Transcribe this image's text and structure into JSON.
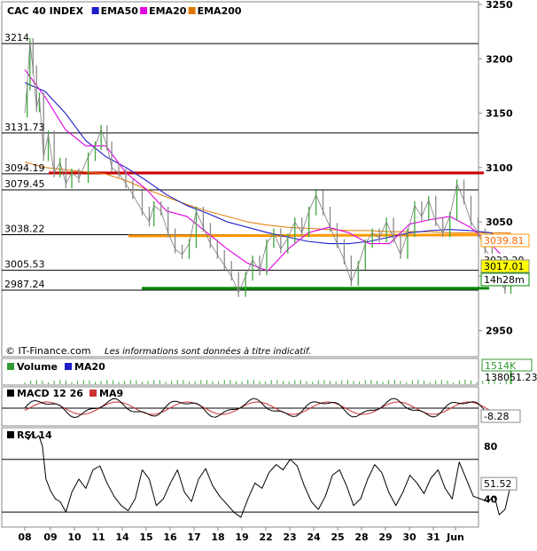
{
  "chart_data": {
    "type": "line",
    "title": "CAC 40 INDEX",
    "main_panel": {
      "legend": [
        {
          "name": "CAC 40 INDEX",
          "color": "#2f9a2f"
        },
        {
          "name": "EMA50",
          "color": "#1c1cc8"
        },
        {
          "name": "EMA20",
          "color": "#e000e0"
        },
        {
          "name": "EMA200",
          "color": "#e07800"
        }
      ],
      "ylim": [
        2935,
        3250
      ],
      "y_ticks": [
        2950,
        3000,
        3050,
        3100,
        3150,
        3200,
        3250
      ],
      "horizontal_levels": [
        3214,
        3131.73,
        3094.19,
        3079.45,
        3038.22,
        3005.53,
        2987.24
      ],
      "level_labels": [
        "3214",
        "3131.73",
        "3094.19",
        "3079.45",
        "3038.22",
        "3005.53",
        "2987.24"
      ],
      "trend_lines": [
        {
          "name": "resistance",
          "color": "#cc0000",
          "y_start": 3095,
          "y_end": 3095
        },
        {
          "name": "support-ema200",
          "color": "#ff9900",
          "y_start": 3037,
          "y_end": 3038
        },
        {
          "name": "support",
          "color": "#008800",
          "y_start": 2989,
          "y_end": 2989
        }
      ],
      "last_value_labels": [
        {
          "text": "3039.81",
          "value": 3039.81,
          "style": "outline-orange"
        },
        {
          "text": "3022.20",
          "value": 3022.2,
          "style": "plain"
        },
        {
          "text": "3017.01",
          "value": 3017.01,
          "style": "fill-yellow"
        },
        {
          "text": "14h28m",
          "value": 3005,
          "style": "outline-green"
        }
      ],
      "price_points": [
        {
          "x": 0.0,
          "y": 3150
        },
        {
          "x": 0.1,
          "y": 3175
        },
        {
          "x": 0.22,
          "y": 3215
        },
        {
          "x": 0.35,
          "y": 3190
        },
        {
          "x": 0.5,
          "y": 3155
        },
        {
          "x": 0.62,
          "y": 3165
        },
        {
          "x": 0.8,
          "y": 3110
        },
        {
          "x": 1.0,
          "y": 3130
        },
        {
          "x": 1.25,
          "y": 3095
        },
        {
          "x": 1.5,
          "y": 3105
        },
        {
          "x": 1.75,
          "y": 3085
        },
        {
          "x": 2.0,
          "y": 3095
        },
        {
          "x": 2.3,
          "y": 3090
        },
        {
          "x": 2.7,
          "y": 3110
        },
        {
          "x": 3.0,
          "y": 3120
        },
        {
          "x": 3.25,
          "y": 3135
        },
        {
          "x": 3.5,
          "y": 3120
        },
        {
          "x": 3.7,
          "y": 3100
        },
        {
          "x": 4.0,
          "y": 3095
        },
        {
          "x": 4.3,
          "y": 3085
        },
        {
          "x": 4.6,
          "y": 3075
        },
        {
          "x": 5.0,
          "y": 3060
        },
        {
          "x": 5.3,
          "y": 3050
        },
        {
          "x": 5.5,
          "y": 3065
        },
        {
          "x": 5.8,
          "y": 3060
        },
        {
          "x": 6.1,
          "y": 3040
        },
        {
          "x": 6.4,
          "y": 3025
        },
        {
          "x": 6.7,
          "y": 3020
        },
        {
          "x": 7.0,
          "y": 3030
        },
        {
          "x": 7.3,
          "y": 3060
        },
        {
          "x": 7.6,
          "y": 3045
        },
        {
          "x": 7.9,
          "y": 3030
        },
        {
          "x": 8.2,
          "y": 3020
        },
        {
          "x": 8.5,
          "y": 3010
        },
        {
          "x": 8.8,
          "y": 3000
        },
        {
          "x": 9.1,
          "y": 2985
        },
        {
          "x": 9.4,
          "y": 3000
        },
        {
          "x": 9.7,
          "y": 3015
        },
        {
          "x": 10.0,
          "y": 3005
        },
        {
          "x": 10.3,
          "y": 3030
        },
        {
          "x": 10.6,
          "y": 3040
        },
        {
          "x": 10.9,
          "y": 3025
        },
        {
          "x": 11.2,
          "y": 3035
        },
        {
          "x": 11.5,
          "y": 3050
        },
        {
          "x": 11.8,
          "y": 3040
        },
        {
          "x": 12.1,
          "y": 3060
        },
        {
          "x": 12.4,
          "y": 3075
        },
        {
          "x": 12.7,
          "y": 3060
        },
        {
          "x": 13.0,
          "y": 3045
        },
        {
          "x": 13.3,
          "y": 3030
        },
        {
          "x": 13.6,
          "y": 3015
        },
        {
          "x": 13.9,
          "y": 2995
        },
        {
          "x": 14.2,
          "y": 3010
        },
        {
          "x": 14.5,
          "y": 3030
        },
        {
          "x": 14.8,
          "y": 3040
        },
        {
          "x": 15.1,
          "y": 3035
        },
        {
          "x": 15.4,
          "y": 3050
        },
        {
          "x": 15.7,
          "y": 3035
        },
        {
          "x": 16.0,
          "y": 3020
        },
        {
          "x": 16.3,
          "y": 3040
        },
        {
          "x": 16.6,
          "y": 3065
        },
        {
          "x": 16.9,
          "y": 3055
        },
        {
          "x": 17.2,
          "y": 3070
        },
        {
          "x": 17.5,
          "y": 3050
        },
        {
          "x": 17.8,
          "y": 3040
        },
        {
          "x": 18.1,
          "y": 3055
        },
        {
          "x": 18.4,
          "y": 3085
        },
        {
          "x": 18.7,
          "y": 3070
        },
        {
          "x": 19.0,
          "y": 3050
        },
        {
          "x": 19.3,
          "y": 3040
        },
        {
          "x": 19.6,
          "y": 3025
        },
        {
          "x": 19.9,
          "y": 3015
        },
        {
          "x": 20.2,
          "y": 2995
        },
        {
          "x": 20.45,
          "y": 2988
        },
        {
          "x": 20.7,
          "y": 3017
        }
      ],
      "ema50": [
        3178,
        3170,
        3150,
        3125,
        3110,
        3100,
        3088,
        3075,
        3065,
        3058,
        3050,
        3045,
        3040,
        3036,
        3032,
        3030,
        3030,
        3032,
        3036,
        3040,
        3042,
        3043,
        3042,
        3040,
        3030
      ],
      "ema20": [
        3190,
        3165,
        3135,
        3120,
        3120,
        3095,
        3080,
        3060,
        3055,
        3040,
        3025,
        3012,
        3005,
        3025,
        3040,
        3045,
        3040,
        3030,
        3030,
        3048,
        3052,
        3055,
        3045,
        3030,
        3010
      ],
      "ema200": [
        3105,
        3100,
        3098,
        3096,
        3094,
        3088,
        3080,
        3073,
        3066,
        3060,
        3055,
        3050,
        3047,
        3045,
        3044,
        3043,
        3042,
        3042,
        3041,
        3041,
        3041,
        3040,
        3040,
        3040,
        3039.8
      ]
    },
    "x_axis": {
      "labels": [
        "08",
        "09",
        "10",
        "11",
        "14",
        "15",
        "16",
        "17",
        "18",
        "19",
        "22",
        "23",
        "24",
        "25",
        "28",
        "29",
        "30",
        "31",
        "Jun"
      ]
    },
    "volume_panel": {
      "legend": [
        {
          "name": "Volume",
          "color": "#2f9a2f"
        },
        {
          "name": "MA20",
          "color": "#1c1cc8"
        }
      ],
      "last_value_labels": [
        "1514K",
        "138051.23"
      ]
    },
    "macd_panel": {
      "legend": [
        {
          "name": "MACD 12 26",
          "color": "#000000"
        },
        {
          "name": "MA9",
          "color": "#cc3333"
        }
      ],
      "last_value_label": "-8.28"
    },
    "rsi_panel": {
      "legend": [
        {
          "name": "RSI 14",
          "color": "#000000"
        }
      ],
      "ylim": [
        20,
        92
      ],
      "y_ticks": [
        40,
        80
      ],
      "reference_levels": [
        30,
        70
      ],
      "last_value": 51.52,
      "last_value_label": "51.52",
      "points": [
        {
          "x": 0.0,
          "y": 88
        },
        {
          "x": 0.15,
          "y": 85
        },
        {
          "x": 0.3,
          "y": 90
        },
        {
          "x": 0.45,
          "y": 86
        },
        {
          "x": 0.6,
          "y": 88
        },
        {
          "x": 0.75,
          "y": 80
        },
        {
          "x": 0.9,
          "y": 55
        },
        {
          "x": 1.1,
          "y": 46
        },
        {
          "x": 1.3,
          "y": 40
        },
        {
          "x": 1.5,
          "y": 38
        },
        {
          "x": 1.75,
          "y": 30
        },
        {
          "x": 2.0,
          "y": 45
        },
        {
          "x": 2.3,
          "y": 55
        },
        {
          "x": 2.6,
          "y": 48
        },
        {
          "x": 2.9,
          "y": 62
        },
        {
          "x": 3.2,
          "y": 65
        },
        {
          "x": 3.5,
          "y": 52
        },
        {
          "x": 3.8,
          "y": 42
        },
        {
          "x": 4.1,
          "y": 35
        },
        {
          "x": 4.4,
          "y": 31
        },
        {
          "x": 4.7,
          "y": 40
        },
        {
          "x": 5.0,
          "y": 62
        },
        {
          "x": 5.3,
          "y": 55
        },
        {
          "x": 5.6,
          "y": 35
        },
        {
          "x": 5.9,
          "y": 40
        },
        {
          "x": 6.2,
          "y": 52
        },
        {
          "x": 6.5,
          "y": 62
        },
        {
          "x": 6.8,
          "y": 45
        },
        {
          "x": 7.1,
          "y": 38
        },
        {
          "x": 7.4,
          "y": 55
        },
        {
          "x": 7.7,
          "y": 63
        },
        {
          "x": 8.0,
          "y": 50
        },
        {
          "x": 8.3,
          "y": 42
        },
        {
          "x": 8.6,
          "y": 36
        },
        {
          "x": 8.9,
          "y": 30
        },
        {
          "x": 9.2,
          "y": 26
        },
        {
          "x": 9.5,
          "y": 40
        },
        {
          "x": 9.8,
          "y": 52
        },
        {
          "x": 10.1,
          "y": 48
        },
        {
          "x": 10.4,
          "y": 60
        },
        {
          "x": 10.7,
          "y": 66
        },
        {
          "x": 11.0,
          "y": 62
        },
        {
          "x": 11.3,
          "y": 70
        },
        {
          "x": 11.6,
          "y": 65
        },
        {
          "x": 11.9,
          "y": 50
        },
        {
          "x": 12.2,
          "y": 38
        },
        {
          "x": 12.5,
          "y": 32
        },
        {
          "x": 12.8,
          "y": 42
        },
        {
          "x": 13.1,
          "y": 58
        },
        {
          "x": 13.4,
          "y": 62
        },
        {
          "x": 13.7,
          "y": 50
        },
        {
          "x": 14.0,
          "y": 35
        },
        {
          "x": 14.3,
          "y": 40
        },
        {
          "x": 14.6,
          "y": 55
        },
        {
          "x": 14.9,
          "y": 66
        },
        {
          "x": 15.2,
          "y": 60
        },
        {
          "x": 15.5,
          "y": 45
        },
        {
          "x": 15.8,
          "y": 35
        },
        {
          "x": 16.1,
          "y": 45
        },
        {
          "x": 16.4,
          "y": 58
        },
        {
          "x": 16.7,
          "y": 52
        },
        {
          "x": 17.0,
          "y": 44
        },
        {
          "x": 17.3,
          "y": 56
        },
        {
          "x": 17.6,
          "y": 62
        },
        {
          "x": 17.9,
          "y": 48
        },
        {
          "x": 18.2,
          "y": 40
        },
        {
          "x": 18.5,
          "y": 68
        },
        {
          "x": 18.8,
          "y": 55
        },
        {
          "x": 19.1,
          "y": 42
        },
        {
          "x": 19.4,
          "y": 40
        },
        {
          "x": 19.7,
          "y": 38
        },
        {
          "x": 20.0,
          "y": 42
        },
        {
          "x": 20.2,
          "y": 28
        },
        {
          "x": 20.45,
          "y": 32
        },
        {
          "x": 20.7,
          "y": 51.52
        }
      ]
    }
  },
  "footer": {
    "source": "© IT-Finance.com",
    "disclaimer": "Les informations sont données à titre indicatif."
  }
}
